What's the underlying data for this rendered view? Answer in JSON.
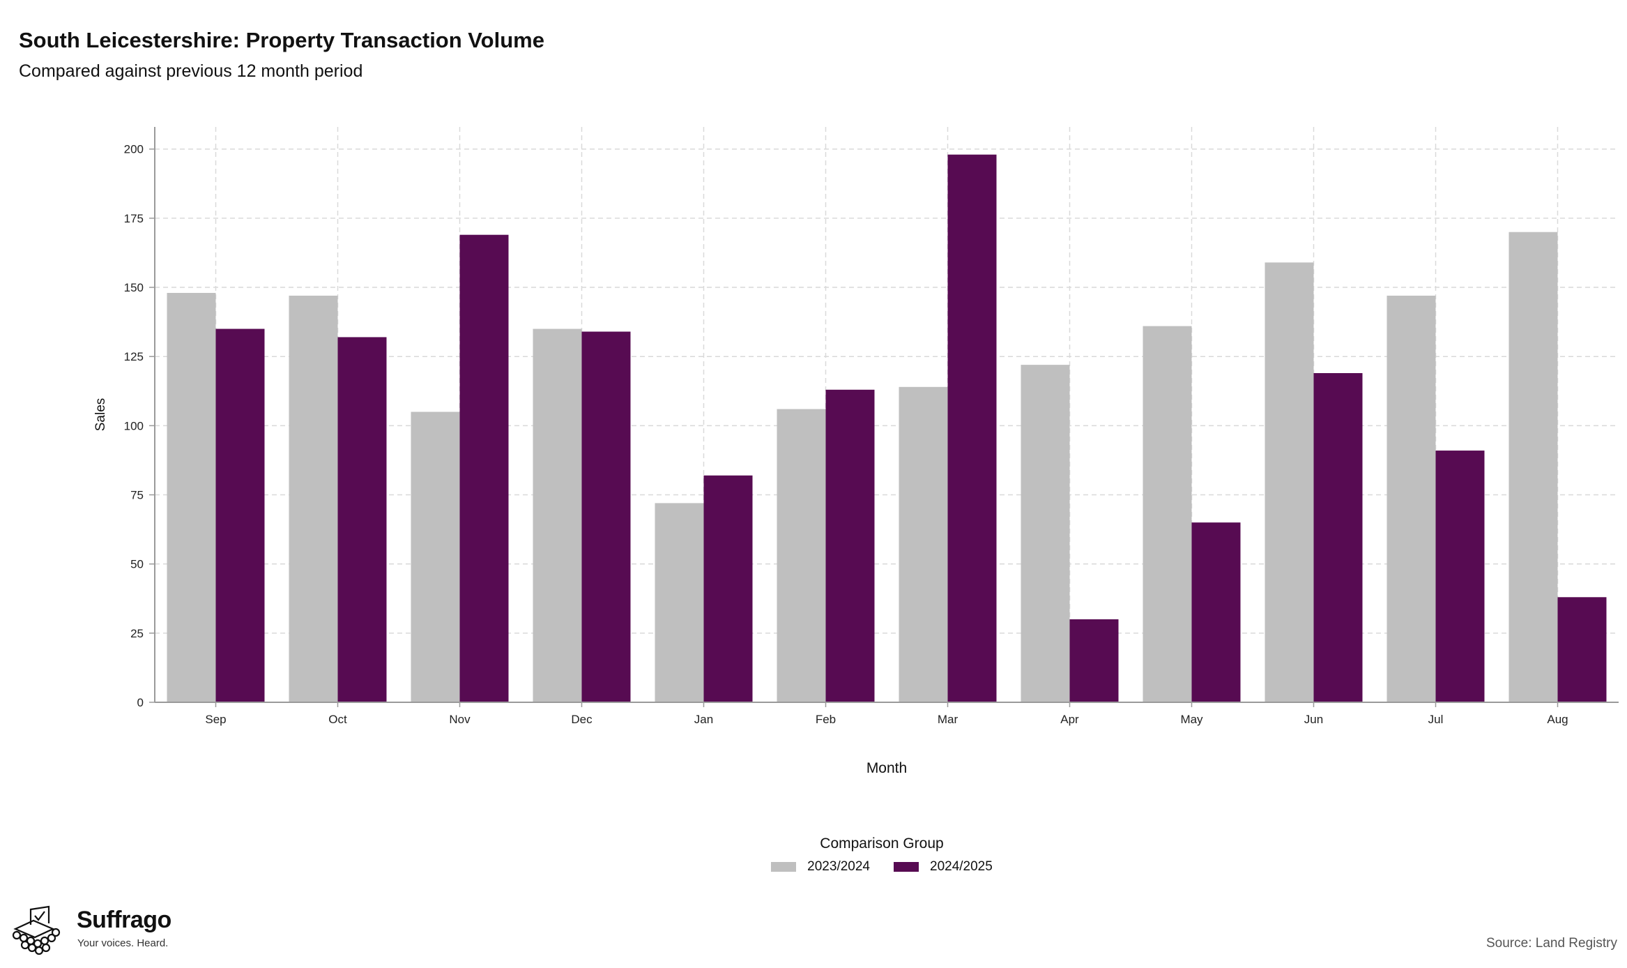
{
  "title": "South Leicestershire: Property Transaction Volume",
  "subtitle": "Compared against previous 12 month period",
  "source": "Source: Land Registry",
  "logo": {
    "name": "Suffrago",
    "tagline": "Your voices. Heard."
  },
  "legend": {
    "title": "Comparison Group"
  },
  "colors": {
    "2023/2024": "#bfbfbf",
    "2024/2025": "#570b52",
    "grid": "#d9d9d9",
    "axis": "#9a9a9a"
  },
  "chart_data": {
    "type": "bar",
    "xlabel": "Month",
    "ylabel": "Sales",
    "ylim": [
      0,
      208
    ],
    "yticks": [
      0,
      25,
      50,
      75,
      100,
      125,
      150,
      175,
      200
    ],
    "grid": true,
    "legend_position": "bottom",
    "categories": [
      "Sep",
      "Oct",
      "Nov",
      "Dec",
      "Jan",
      "Feb",
      "Mar",
      "Apr",
      "May",
      "Jun",
      "Jul",
      "Aug"
    ],
    "series": [
      {
        "name": "2023/2024",
        "color": "#bfbfbf",
        "values": [
          148,
          147,
          105,
          135,
          72,
          106,
          114,
          122,
          136,
          159,
          147,
          170
        ]
      },
      {
        "name": "2024/2025",
        "color": "#570b52",
        "values": [
          135,
          132,
          169,
          134,
          82,
          113,
          198,
          30,
          65,
          119,
          91,
          38
        ]
      }
    ]
  }
}
